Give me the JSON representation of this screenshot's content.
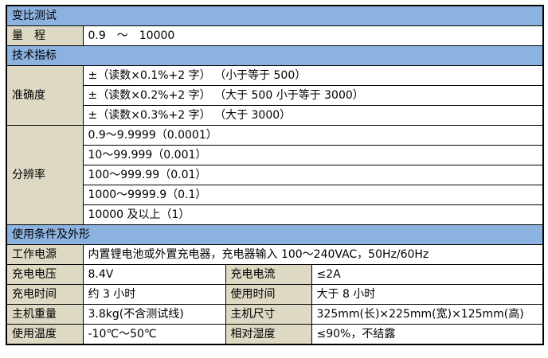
{
  "colors": {
    "section_header_bg": "#8CB2E0",
    "label_cell_bg": "#DDD9C3",
    "value_cell_bg": "#FFFFFF",
    "border": "#000000",
    "text": "#000000"
  },
  "sections": {
    "ratio_test": {
      "title": "变比测试"
    },
    "range": {
      "label": "量　程",
      "value": "0.9　～　10000"
    },
    "tech_spec": {
      "title": "技术指标"
    },
    "accuracy": {
      "label": "准确度",
      "rows": [
        "±（读数×0.1%+2 字） （小于等于 500）",
        "±（读数×0.2%+2 字） （大于 500 小于等于 3000）",
        "±（读数×0.3%+2 字） （大于 3000）"
      ]
    },
    "resolution": {
      "label": "分辨率",
      "rows": [
        "0.9～9.9999（0.0001）",
        "10～99.999（0.001）",
        "100～999.99（0.01）",
        "1000～9999.9（0.1）",
        "10000 及以上（1）"
      ]
    },
    "conditions": {
      "title": "使用条件及外形"
    },
    "power": {
      "label": "工作电源",
      "value": "内置锂电池或外置充电器，充电器输入 100～240VAC，50Hz/60Hz"
    },
    "pairs": [
      {
        "label1": "充电电压",
        "value1": "8.4V",
        "label2": "充电电流",
        "value2": "≤2A"
      },
      {
        "label1": "充电时间",
        "value1": "约 3 小时",
        "label2": "使用时间",
        "value2": "大于 8 小时"
      },
      {
        "label1": "主机重量",
        "value1": "3.8kg(不含测试线)",
        "label2": "主机尺寸",
        "value2": "325mm(长)×225mm(宽)×125mm(高)"
      },
      {
        "label1": "使用温度",
        "value1": "-10℃～50℃",
        "label2": "相对湿度",
        "value2": "≤90%，不结露"
      }
    ]
  }
}
